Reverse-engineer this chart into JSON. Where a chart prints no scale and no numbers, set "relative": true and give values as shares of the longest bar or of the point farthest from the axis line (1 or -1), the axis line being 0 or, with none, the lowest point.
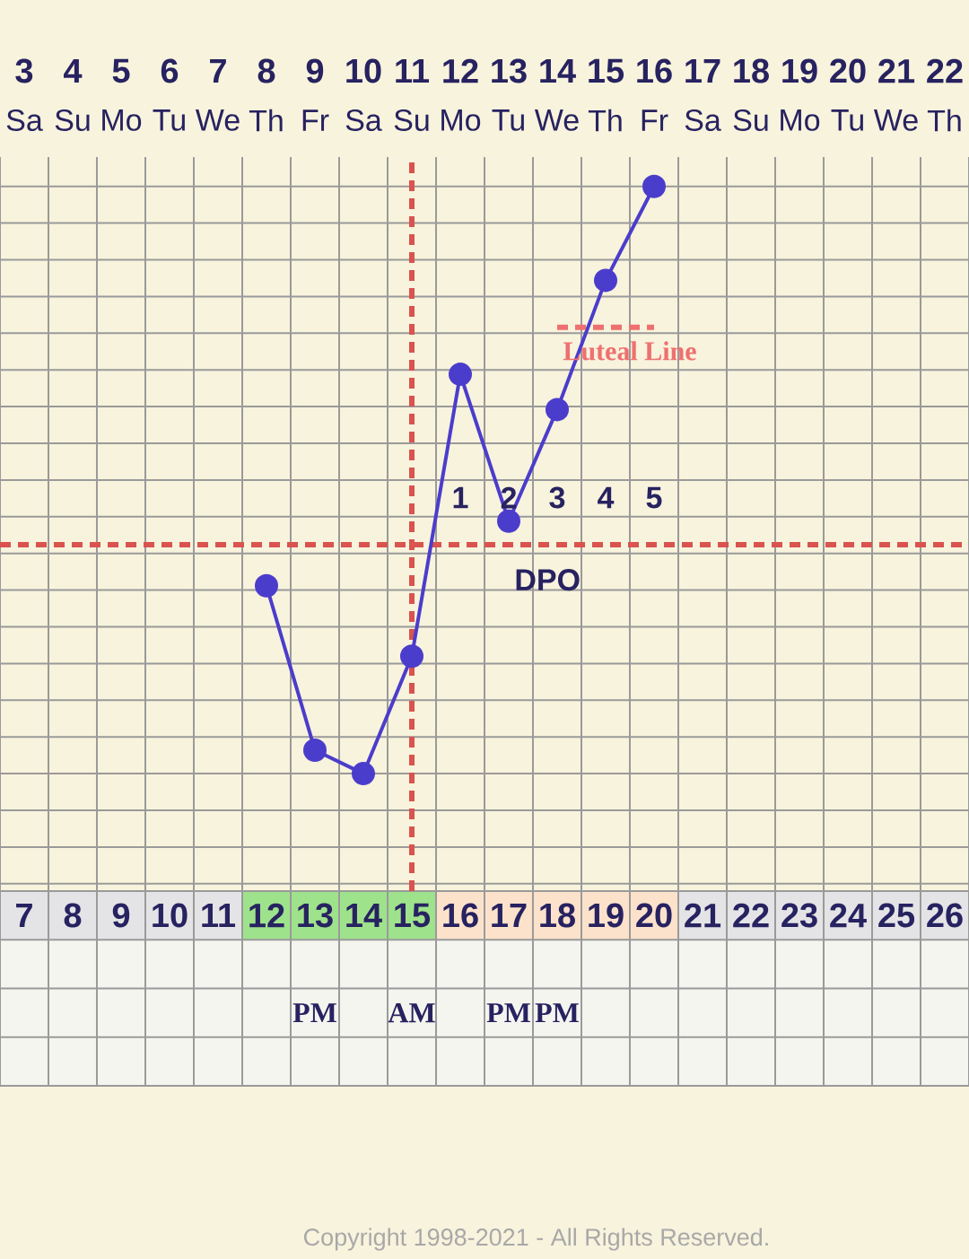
{
  "chart_data": {
    "type": "line",
    "relative": true,
    "grid": true,
    "marker": "circle",
    "line_style": "solid",
    "tick_labels": "x",
    "x": [
      12,
      13,
      14,
      15,
      16,
      17,
      18,
      19,
      20
    ],
    "series": [
      {
        "color": "#4b3dcb",
        "values": [
          0.32,
          0.04,
          0,
          0.2,
          0.68,
          0.43,
          0.62,
          0.84,
          1
        ]
      },
      {
        "color": "#ee7070",
        "x": [
          18,
          20
        ],
        "values": [
          0.76,
          0.76
        ],
        "marker": "none",
        "line_style": "dashed"
      }
    ],
    "xlim": [
      6.5,
      26.5
    ],
    "xticks": [
      7,
      8,
      9,
      10,
      11,
      12,
      13,
      14,
      15,
      16,
      17,
      18,
      19,
      20,
      21,
      22,
      23,
      24,
      25,
      26
    ],
    "x2lim": [
      2.5,
      22.5
    ],
    "x2ticks": [
      3,
      4,
      5,
      6,
      7,
      8,
      9,
      10,
      11,
      12,
      13,
      14,
      15,
      16,
      17,
      18,
      19,
      20,
      21,
      22
    ],
    "ref_lines": [
      {
        "axis": "x",
        "value": 15,
        "color": "#d9534f",
        "line_style": "dashed"
      },
      {
        "axis": "y",
        "value": 0.39,
        "color": "#d9534f",
        "line_style": "dashed"
      }
    ],
    "annotations": [
      "Sa",
      "Su",
      "Mo",
      "Tu",
      "We",
      "Th",
      "Fr",
      "Sa",
      "Su",
      "Mo",
      "Tu",
      "We",
      "Th",
      "Fr",
      "Sa",
      "Su",
      "Mo",
      "Tu",
      "We",
      "Th",
      "Luteal Line",
      "1",
      "2",
      "3",
      "4",
      "5",
      "DPO",
      "PM",
      "AM",
      "PM",
      "PM",
      "Copyright 1998-2021 - All Rights Reserved."
    ]
  }
}
